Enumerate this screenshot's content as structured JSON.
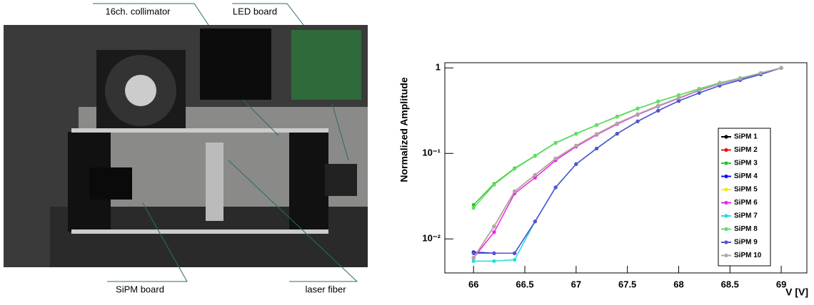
{
  "photo": {
    "labels": [
      "16ch. collimator",
      "LED board",
      "SiPM board",
      "laser fiber"
    ]
  },
  "chart_data": {
    "type": "line",
    "y_label": "Normalized Amplitude",
    "x_label": "V [V]",
    "yscale": "log",
    "legend": "right",
    "xlim": [
      65.72,
      69.25
    ],
    "xticks": [
      66,
      66.5,
      67,
      67.5,
      68,
      68.5,
      69
    ],
    "ylim": [
      0.004,
      1.15
    ],
    "yticks": [
      {
        "value": 0.01,
        "label": "10⁻²"
      },
      {
        "value": 0.1,
        "label": "10⁻¹"
      },
      1
    ],
    "x": [
      66,
      66.2,
      66.4,
      66.6,
      66.8,
      67,
      67.2,
      67.4,
      67.6,
      67.8,
      68,
      68.2,
      68.4,
      68.6,
      68.8,
      69
    ],
    "series": [
      {
        "name": "SiPM 1",
        "color": "#000000",
        "values": [
          0.006,
          0.014,
          0.036,
          0.056,
          0.087,
          0.123,
          0.168,
          0.224,
          0.287,
          0.36,
          0.446,
          0.55,
          0.655,
          0.75,
          0.87,
          1
        ]
      },
      {
        "name": "SiPM 2",
        "color": "#ee1111",
        "values": [
          0.006,
          0.014,
          0.036,
          0.056,
          0.087,
          0.123,
          0.168,
          0.224,
          0.287,
          0.36,
          0.446,
          0.55,
          0.655,
          0.75,
          0.87,
          1
        ]
      },
      {
        "name": "SiPM 3",
        "color": "#22cc22",
        "values": [
          0.025,
          0.044,
          0.067,
          0.094,
          0.133,
          0.17,
          0.215,
          0.27,
          0.335,
          0.405,
          0.48,
          0.57,
          0.67,
          0.76,
          0.87,
          1
        ]
      },
      {
        "name": "SiPM 4",
        "color": "#1111ee",
        "values": [
          0.007,
          0.0068,
          0.0068,
          0.016,
          0.04,
          0.075,
          0.114,
          0.17,
          0.237,
          0.316,
          0.41,
          0.51,
          0.62,
          0.72,
          0.84,
          1
        ]
      },
      {
        "name": "SiPM 5",
        "color": "#eeee00",
        "values": [
          0.006,
          0.014,
          0.036,
          0.056,
          0.087,
          0.123,
          0.168,
          0.224,
          0.287,
          0.36,
          0.446,
          0.55,
          0.655,
          0.75,
          0.87,
          1
        ]
      },
      {
        "name": "SiPM 6",
        "color": "#ee22ee",
        "values": [
          0.006,
          0.012,
          0.034,
          0.052,
          0.083,
          0.12,
          0.165,
          0.22,
          0.283,
          0.355,
          0.44,
          0.545,
          0.65,
          0.745,
          0.865,
          1
        ]
      },
      {
        "name": "SiPM 7",
        "color": "#22dddd",
        "values": [
          0.0055,
          0.0055,
          0.0057,
          0.016,
          0.04,
          0.075,
          0.114,
          0.17,
          0.237,
          0.316,
          0.41,
          0.51,
          0.62,
          0.72,
          0.84,
          1
        ]
      },
      {
        "name": "SiPM 8",
        "color": "#66dd66",
        "values": [
          0.023,
          0.043,
          0.066,
          0.093,
          0.132,
          0.169,
          0.214,
          0.268,
          0.333,
          0.403,
          0.478,
          0.568,
          0.668,
          0.758,
          0.868,
          1
        ]
      },
      {
        "name": "SiPM 9",
        "color": "#5555cc",
        "values": [
          0.0068,
          0.0068,
          0.0068,
          0.016,
          0.04,
          0.075,
          0.114,
          0.17,
          0.237,
          0.316,
          0.41,
          0.51,
          0.62,
          0.72,
          0.84,
          1
        ]
      },
      {
        "name": "SiPM 10",
        "color": "#aaaaaa",
        "values": [
          0.006,
          0.014,
          0.036,
          0.056,
          0.087,
          0.123,
          0.168,
          0.224,
          0.287,
          0.36,
          0.446,
          0.55,
          0.655,
          0.75,
          0.87,
          1
        ]
      }
    ]
  }
}
